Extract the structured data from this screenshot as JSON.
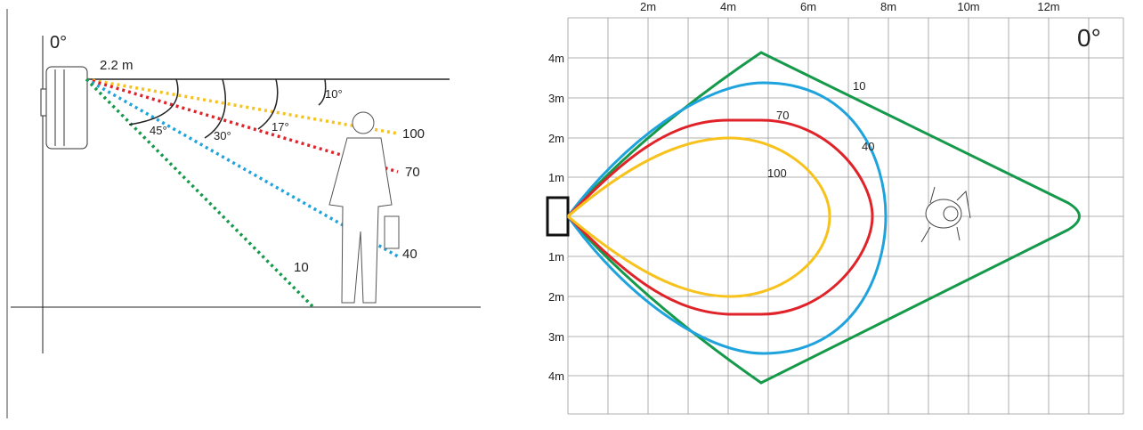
{
  "side_view": {
    "angle_label": "0°",
    "mount_height": "2.2 m",
    "beams": [
      {
        "angle": "10°",
        "range": "100"
      },
      {
        "angle": "17°",
        "range": "70"
      },
      {
        "angle": "30°",
        "range": "40"
      },
      {
        "angle": "45°",
        "range": "10"
      }
    ]
  },
  "top_view": {
    "angle_label": "0°",
    "x_labels": [
      "2m",
      "4m",
      "6m",
      "8m",
      "10m",
      "12m"
    ],
    "y_labels": [
      "4m",
      "3m",
      "2m",
      "1m",
      "1m",
      "2m",
      "3m",
      "4m"
    ],
    "zone_labels": [
      "10",
      "40",
      "70",
      "100"
    ]
  }
}
